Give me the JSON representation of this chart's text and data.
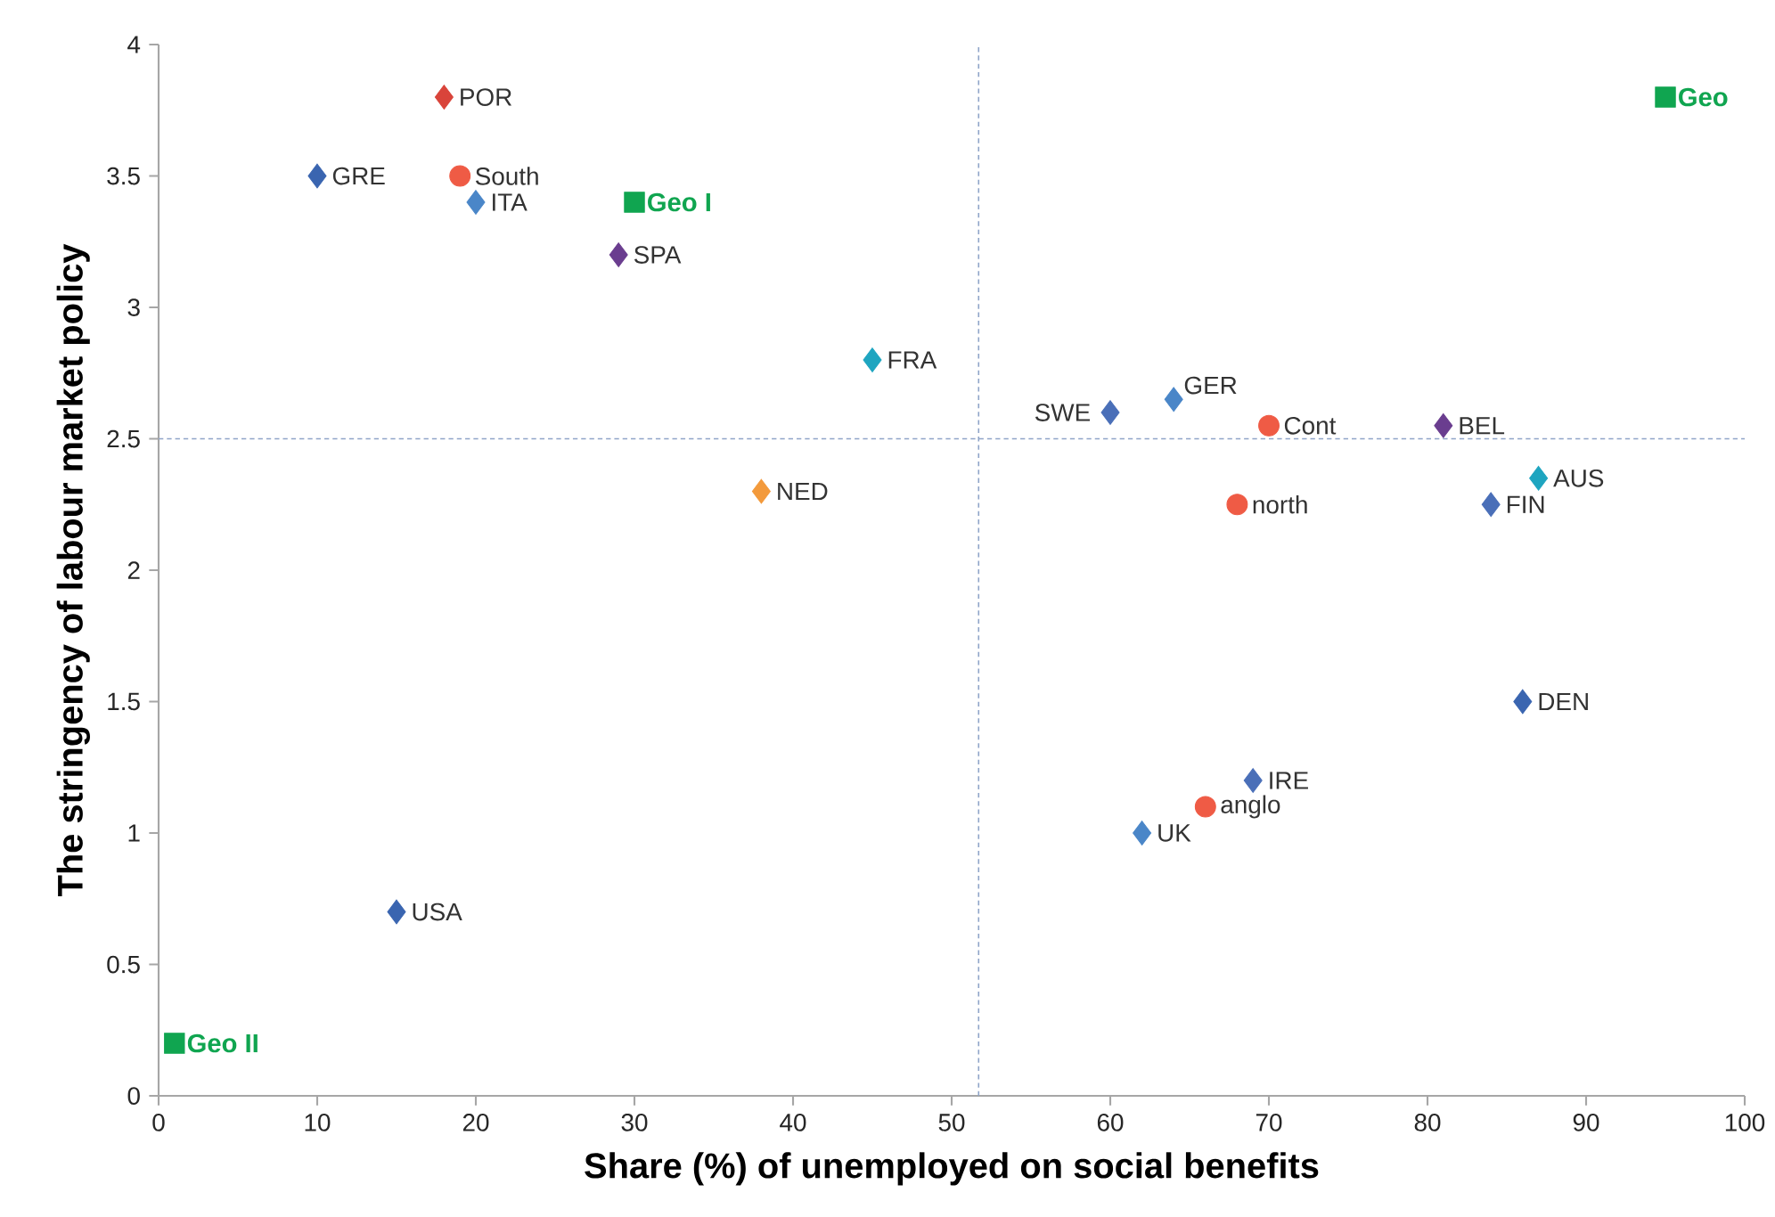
{
  "chart_data": {
    "type": "scatter",
    "xlabel": "Share (%) of unemployed on social benefits",
    "ylabel": "The stringency of labour market policy",
    "xlim": [
      0,
      100
    ],
    "ylim": [
      0,
      4
    ],
    "xticks": [
      0,
      10,
      20,
      30,
      40,
      50,
      60,
      70,
      80,
      90,
      100
    ],
    "yticks": [
      0,
      0.5,
      1,
      1.5,
      2,
      2.5,
      3,
      3.5,
      4
    ],
    "ref_lines": [
      {
        "axis": "x",
        "value": 51.7,
        "color": "#8fa4c8",
        "line_style": "dashed"
      },
      {
        "axis": "y",
        "value": 2.5,
        "color": "#8fa4c8",
        "line_style": "dashed"
      }
    ],
    "series": [
      {
        "name": "POR",
        "color": "#d9443a",
        "marker": "diamond",
        "x": [
          18
        ],
        "values": [
          3.8
        ]
      },
      {
        "name": "GRE",
        "color": "#3a65b0",
        "marker": "diamond",
        "x": [
          10
        ],
        "values": [
          3.5
        ]
      },
      {
        "name": "South",
        "color": "#ef5b45",
        "marker": "circle",
        "x": [
          19
        ],
        "values": [
          3.5
        ]
      },
      {
        "name": "ITA",
        "color": "#4a86c8",
        "marker": "diamond",
        "x": [
          20
        ],
        "values": [
          3.4
        ]
      },
      {
        "name": "Geo I",
        "color": "#10a550",
        "marker": "square",
        "x": [
          30
        ],
        "values": [
          3.4
        ]
      },
      {
        "name": "SPA",
        "color": "#6a3d8f",
        "marker": "diamond",
        "x": [
          29
        ],
        "values": [
          3.2
        ]
      },
      {
        "name": "FRA",
        "color": "#1ea5c0",
        "marker": "diamond",
        "x": [
          45
        ],
        "values": [
          2.8
        ]
      },
      {
        "name": "NED",
        "color": "#f39a3c",
        "marker": "diamond",
        "x": [
          38
        ],
        "values": [
          2.3
        ]
      },
      {
        "name": "SWE",
        "color": "#4a6fb8",
        "marker": "diamond",
        "x": [
          60
        ],
        "values": [
          2.6
        ]
      },
      {
        "name": "GER",
        "color": "#4a86c8",
        "marker": "diamond",
        "x": [
          64
        ],
        "values": [
          2.65
        ]
      },
      {
        "name": "Cont",
        "color": "#ef5b45",
        "marker": "circle",
        "x": [
          70
        ],
        "values": [
          2.55
        ]
      },
      {
        "name": "BEL",
        "color": "#6a3d8f",
        "marker": "diamond",
        "x": [
          81
        ],
        "values": [
          2.55
        ]
      },
      {
        "name": "north",
        "color": "#ef5b45",
        "marker": "circle",
        "x": [
          68
        ],
        "values": [
          2.25
        ]
      },
      {
        "name": "AUS",
        "color": "#1ea5c0",
        "marker": "diamond",
        "x": [
          87
        ],
        "values": [
          2.35
        ]
      },
      {
        "name": "FIN",
        "color": "#4a6fb8",
        "marker": "diamond",
        "x": [
          84
        ],
        "values": [
          2.25
        ]
      },
      {
        "name": "Geo",
        "color": "#10a550",
        "marker": "square",
        "x": [
          95
        ],
        "values": [
          3.8
        ]
      },
      {
        "name": "DEN",
        "color": "#3a65b0",
        "marker": "diamond",
        "x": [
          86
        ],
        "values": [
          1.5
        ]
      },
      {
        "name": "IRE",
        "color": "#4a6fb8",
        "marker": "diamond",
        "x": [
          69
        ],
        "values": [
          1.2
        ]
      },
      {
        "name": "anglo",
        "color": "#ef5b45",
        "marker": "circle",
        "x": [
          66
        ],
        "values": [
          1.1
        ]
      },
      {
        "name": "UK",
        "color": "#4a86c8",
        "marker": "diamond",
        "x": [
          62
        ],
        "values": [
          1.0
        ]
      },
      {
        "name": "USA",
        "color": "#3a65b0",
        "marker": "diamond",
        "x": [
          15
        ],
        "values": [
          0.7
        ]
      },
      {
        "name": "Geo II",
        "color": "#10a550",
        "marker": "square",
        "x": [
          1
        ],
        "values": [
          0.2
        ]
      }
    ]
  }
}
